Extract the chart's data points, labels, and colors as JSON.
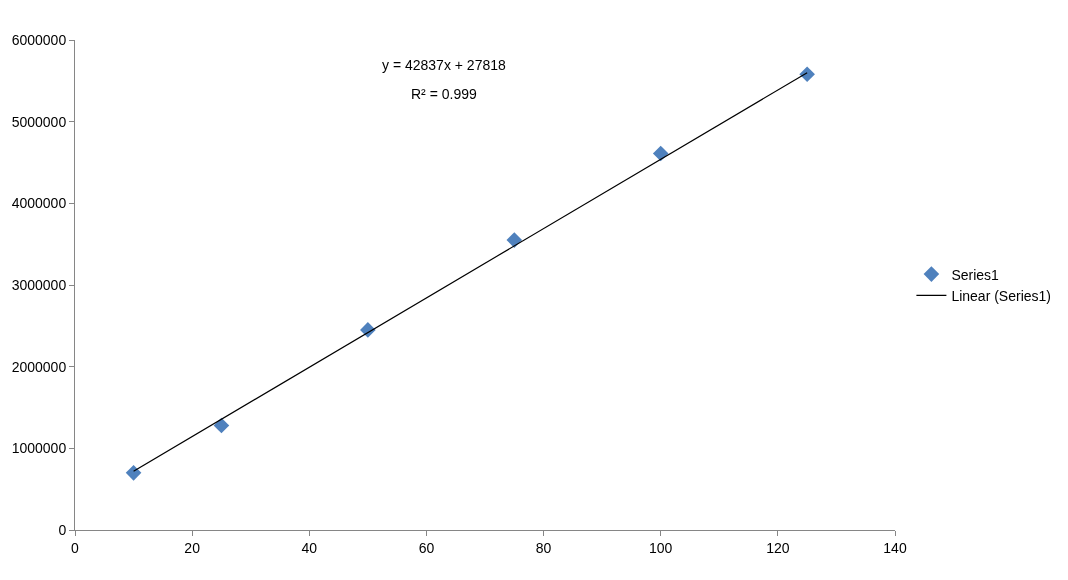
{
  "chart_data": {
    "type": "scatter",
    "annotations": [
      "y = 42837x + 27818",
      "R² = 0.999"
    ],
    "x": [
      10,
      25,
      50,
      75,
      100,
      125
    ],
    "series": [
      {
        "name": "Series1",
        "color": "#4f81bd",
        "marker": "diamond",
        "values": [
          700000,
          1280000,
          2450000,
          3550000,
          4610000,
          5580000
        ]
      },
      {
        "name": "Linear (Series1)",
        "type": "line",
        "marker": "none",
        "color": "#000000",
        "x": [
          10,
          125
        ],
        "values": [
          720000,
          5600000
        ]
      }
    ],
    "xlim": [
      0,
      140
    ],
    "xticks": [
      0,
      20,
      40,
      60,
      80,
      100,
      120,
      140
    ],
    "ylim": [
      0,
      6000000
    ],
    "yticks": [
      0,
      1000000,
      2000000,
      3000000,
      4000000,
      5000000,
      6000000
    ],
    "legend": "right",
    "line_style": "solid"
  }
}
